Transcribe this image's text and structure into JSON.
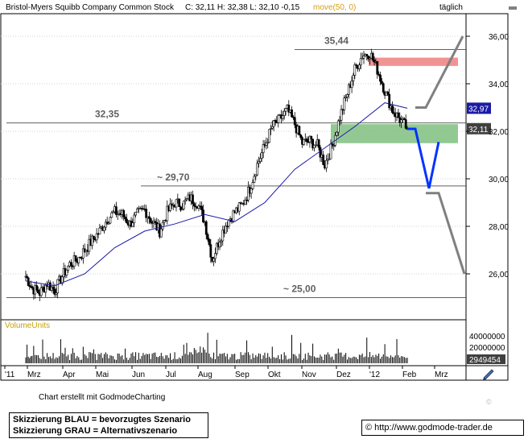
{
  "header": {
    "title": "Bristol-Myers Squibb Company Common Stock",
    "ohlc": "C: 32,11 H: 32,38 L: 32,10 -0,15",
    "indicator": "move(50, 0)",
    "period": "täglich"
  },
  "colors": {
    "indicator": "#d4a017",
    "candles": "#000000",
    "moving_average": "#1a1aa8",
    "preferred_scenario": "#0033ff",
    "alternative_scenario": "#808080",
    "support_zone": "#7fc07f",
    "resistance_zone": "#f08080",
    "volume_label": "#c8a000"
  },
  "chart_data": {
    "type": "candlestick",
    "price_axis": {
      "ticks": [
        "36,00",
        "34,00",
        "32,00",
        "30,00",
        "28,00",
        "26,00"
      ],
      "ylim": [
        24.3,
        36.8
      ],
      "position": "right"
    },
    "time_axis": {
      "labels": [
        "'11",
        "Mrz",
        "Apr",
        "Mai",
        "Jun",
        "Jul",
        "Aug",
        "Sep",
        "Okt",
        "Nov",
        "Dez",
        "'12",
        "Feb",
        "Mrz"
      ]
    },
    "close_series": [
      [
        "2011-02-15",
        25.9
      ],
      [
        "2011-02-21",
        25.4
      ],
      [
        "2011-02-28",
        25.2
      ],
      [
        "2011-03-07",
        25.6
      ],
      [
        "2011-03-14",
        25.3
      ],
      [
        "2011-03-21",
        25.9
      ],
      [
        "2011-03-28",
        26.4
      ],
      [
        "2011-04-04",
        26.6
      ],
      [
        "2011-04-11",
        27.0
      ],
      [
        "2011-04-18",
        27.4
      ],
      [
        "2011-04-25",
        27.8
      ],
      [
        "2011-05-02",
        28.3
      ],
      [
        "2011-05-09",
        28.6
      ],
      [
        "2011-05-16",
        28.5
      ],
      [
        "2011-05-23",
        28.1
      ],
      [
        "2011-05-30",
        28.5
      ],
      [
        "2011-06-06",
        28.7
      ],
      [
        "2011-06-13",
        28.2
      ],
      [
        "2011-06-20",
        27.8
      ],
      [
        "2011-06-27",
        28.6
      ],
      [
        "2011-07-04",
        29.0
      ],
      [
        "2011-07-11",
        28.9
      ],
      [
        "2011-07-18",
        29.2
      ],
      [
        "2011-07-25",
        29.0
      ],
      [
        "2011-08-01",
        28.2
      ],
      [
        "2011-08-08",
        26.6
      ],
      [
        "2011-08-15",
        27.5
      ],
      [
        "2011-08-22",
        28.2
      ],
      [
        "2011-08-29",
        28.6
      ],
      [
        "2011-09-05",
        28.9
      ],
      [
        "2011-09-12",
        29.6
      ],
      [
        "2011-09-19",
        30.6
      ],
      [
        "2011-09-26",
        31.4
      ],
      [
        "2011-10-03",
        32.2
      ],
      [
        "2011-10-10",
        32.5
      ],
      [
        "2011-10-17",
        32.9
      ],
      [
        "2011-10-24",
        32.3
      ],
      [
        "2011-10-31",
        31.5
      ],
      [
        "2011-11-07",
        31.6
      ],
      [
        "2011-11-14",
        31.4
      ],
      [
        "2011-11-21",
        30.6
      ],
      [
        "2011-11-28",
        31.4
      ],
      [
        "2011-12-05",
        32.6
      ],
      [
        "2011-12-12",
        33.6
      ],
      [
        "2011-12-19",
        34.6
      ],
      [
        "2011-12-26",
        35.2
      ],
      [
        "2012-01-02",
        35.3
      ],
      [
        "2012-01-09",
        34.6
      ],
      [
        "2012-01-16",
        33.7
      ],
      [
        "2012-01-23",
        32.9
      ],
      [
        "2012-01-30",
        32.5
      ],
      [
        "2012-02-06",
        32.11
      ]
    ],
    "moving_average_50": [
      [
        "2011-02-15",
        25.7
      ],
      [
        "2011-03-14",
        25.5
      ],
      [
        "2011-04-11",
        26.0
      ],
      [
        "2011-05-09",
        27.1
      ],
      [
        "2011-06-06",
        27.8
      ],
      [
        "2011-07-04",
        28.1
      ],
      [
        "2011-08-01",
        28.5
      ],
      [
        "2011-08-29",
        28.2
      ],
      [
        "2011-09-26",
        29.0
      ],
      [
        "2011-10-24",
        30.4
      ],
      [
        "2011-11-21",
        31.3
      ],
      [
        "2011-12-19",
        32.2
      ],
      [
        "2012-01-16",
        33.2
      ],
      [
        "2012-02-06",
        32.97
      ]
    ],
    "horizontal_levels": [
      {
        "value": 35.44,
        "label": "35,44"
      },
      {
        "value": 32.35,
        "label": "32,35"
      },
      {
        "value": 29.7,
        "label": "~ 29,70"
      },
      {
        "value": 25.0,
        "label": "~ 25,00"
      }
    ],
    "zones": [
      {
        "name": "resistance",
        "from": 34.75,
        "to": 35.1
      },
      {
        "name": "support",
        "from": 31.5,
        "to": 32.3
      }
    ],
    "price_tags": [
      {
        "value": 32.97,
        "label": "32,97"
      },
      {
        "value": 32.11,
        "label": "32,11"
      }
    ],
    "scenarios": {
      "preferred": {
        "path": [
          32.1,
          32.1,
          29.6,
          31.55
        ]
      },
      "alternative": {
        "path": [
          [
            33.0,
            33.0,
            36.0
          ],
          [
            29.4,
            29.4,
            26.0
          ]
        ]
      }
    },
    "volume": {
      "label": "VolumeUnits",
      "ticks": [
        "40000000",
        "20000000"
      ],
      "last": "2949454"
    }
  },
  "notes": {
    "credit": "Chart erstellt mit GodmodeCharting",
    "legend_blue": "Skizzierung BLAU = bevorzugtes Szenario",
    "legend_grey": "Skizzierung GRAU = Alternativszenario",
    "url": "http://www.godmode-trader.de",
    "copyright": "©"
  }
}
